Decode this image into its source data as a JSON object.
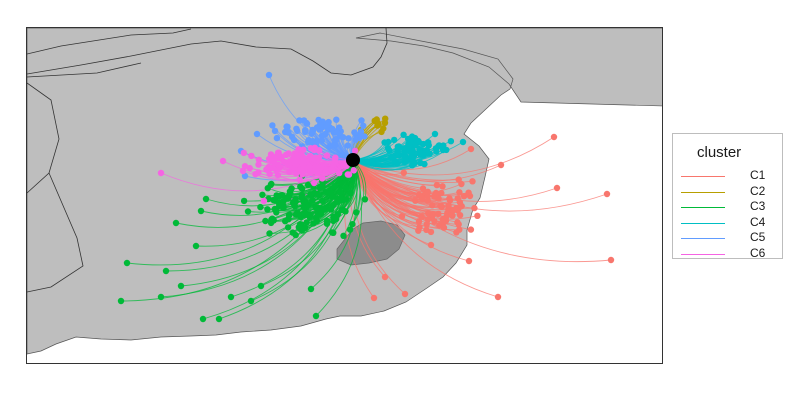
{
  "legend": {
    "title": "cluster",
    "items": [
      {
        "label": "C1",
        "color": "#F8766D"
      },
      {
        "label": "C2",
        "color": "#B79F00"
      },
      {
        "label": "C3",
        "color": "#00BA38"
      },
      {
        "label": "C4",
        "color": "#00BFC4"
      },
      {
        "label": "C5",
        "color": "#619CFF"
      },
      {
        "label": "C6",
        "color": "#F564E3"
      }
    ]
  },
  "map": {
    "land_color": "#BEBEBE",
    "lake_color": "#8C8C8C",
    "origin_marker_color": "#000000"
  }
}
